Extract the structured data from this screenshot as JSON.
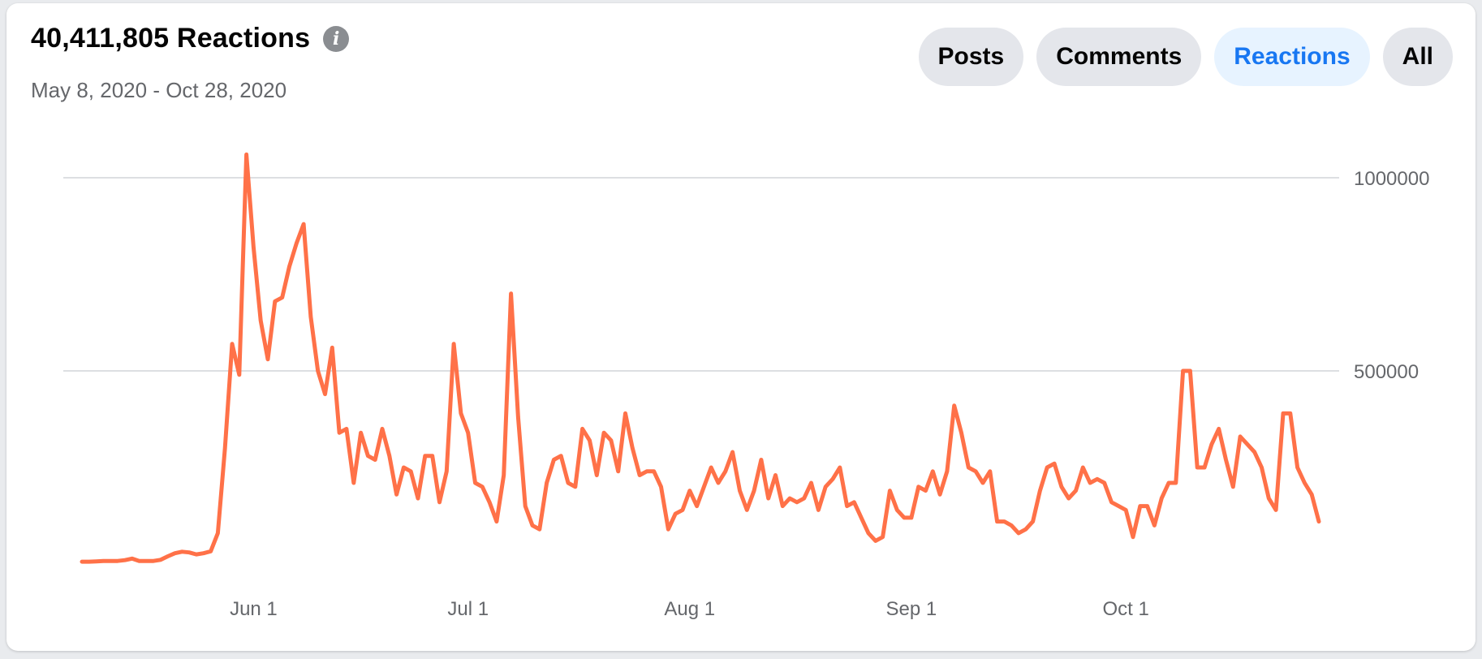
{
  "header": {
    "title": "40,411,805 Reactions",
    "info_icon": "info-icon",
    "date_range": "May 8, 2020 - Oct 28, 2020"
  },
  "filters": [
    {
      "label": "Posts",
      "active": false
    },
    {
      "label": "Comments",
      "active": false
    },
    {
      "label": "Reactions",
      "active": true
    },
    {
      "label": "All",
      "active": false
    }
  ],
  "colors": {
    "line": "#ff7148",
    "grid": "#dddfe2",
    "accent": "#1877f2"
  },
  "chart_data": {
    "type": "line",
    "title": "40,411,805 Reactions",
    "subtitle": "May 8, 2020 - Oct 28, 2020",
    "x_start": "2020-05-08",
    "x_end": "2020-10-28",
    "ylim": [
      0,
      1100000
    ],
    "y_ticks": [
      {
        "value": 500000,
        "label": "500000"
      },
      {
        "value": 1000000,
        "label": "1000000"
      }
    ],
    "x_ticks": [
      {
        "date": "2020-06-01",
        "label": "Jun 1"
      },
      {
        "date": "2020-07-01",
        "label": "Jul 1"
      },
      {
        "date": "2020-08-01",
        "label": "Aug 1"
      },
      {
        "date": "2020-09-01",
        "label": "Sep 1"
      },
      {
        "date": "2020-10-01",
        "label": "Oct 1"
      }
    ],
    "grid": true,
    "legend": "none",
    "series": [
      {
        "values": [
          6000,
          6000,
          7000,
          8000,
          8000,
          8000,
          10000,
          14000,
          8000,
          8000,
          8000,
          11000,
          20000,
          28000,
          32000,
          30000,
          25000,
          28000,
          33000,
          80000,
          300000,
          570000,
          490000,
          1060000,
          820000,
          630000,
          530000,
          680000,
          690000,
          770000,
          830000,
          880000,
          640000,
          500000,
          440000,
          560000,
          340000,
          350000,
          210000,
          340000,
          280000,
          270000,
          350000,
          280000,
          180000,
          250000,
          240000,
          170000,
          280000,
          280000,
          160000,
          240000,
          570000,
          390000,
          340000,
          210000,
          200000,
          160000,
          110000,
          230000,
          700000,
          380000,
          150000,
          100000,
          90000,
          210000,
          270000,
          280000,
          210000,
          200000,
          350000,
          320000,
          230000,
          340000,
          320000,
          240000,
          390000,
          300000,
          230000,
          240000,
          240000,
          200000,
          90000,
          130000,
          140000,
          190000,
          150000,
          200000,
          250000,
          210000,
          240000,
          290000,
          190000,
          140000,
          190000,
          270000,
          170000,
          230000,
          150000,
          170000,
          160000,
          170000,
          210000,
          140000,
          200000,
          220000,
          250000,
          150000,
          160000,
          120000,
          80000,
          60000,
          70000,
          190000,
          140000,
          120000,
          120000,
          200000,
          190000,
          240000,
          180000,
          240000,
          410000,
          340000,
          250000,
          240000,
          210000,
          240000,
          110000,
          110000,
          100000,
          80000,
          90000,
          110000,
          190000,
          250000,
          260000,
          200000,
          170000,
          190000,
          250000,
          210000,
          220000,
          210000,
          160000,
          150000,
          140000,
          70000,
          150000,
          150000,
          100000,
          170000,
          210000,
          210000,
          500000,
          500000,
          250000,
          250000,
          310000,
          350000,
          270000,
          200000,
          330000,
          310000,
          290000,
          250000,
          170000,
          140000,
          390000,
          390000,
          250000,
          210000,
          180000,
          110000
        ]
      }
    ]
  }
}
